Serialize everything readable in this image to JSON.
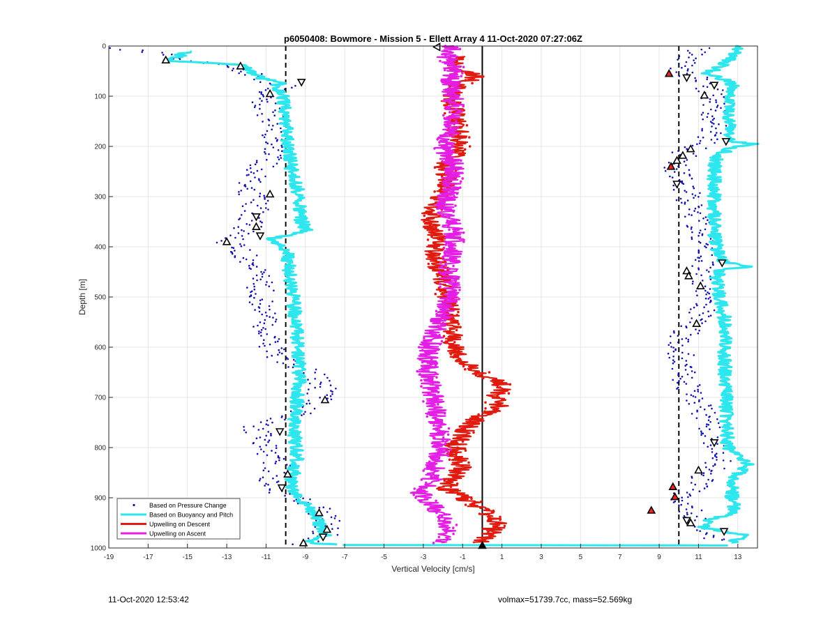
{
  "chart_data": {
    "type": "scatter",
    "title": "p6050408: Bowmore - Mission 5 - Ellett Array 4 11-Oct-2020 07:27:06Z",
    "xlabel": "Vertical Velocity [cm/s]",
    "ylabel": "Depth [m]",
    "xlim": [
      -19,
      14
    ],
    "ylim": [
      1000,
      0
    ],
    "y_reversed": true,
    "x_ticks": [
      -19,
      -17,
      -15,
      -13,
      -11,
      -9,
      -7,
      -5,
      -3,
      -1,
      1,
      3,
      5,
      7,
      9,
      11,
      13
    ],
    "y_ticks": [
      0,
      100,
      200,
      300,
      400,
      500,
      600,
      700,
      800,
      900,
      1000
    ],
    "grid": true,
    "legend_position": "bottom-left",
    "reference_lines": [
      {
        "x": -10,
        "style": "dashed",
        "color": "#000000"
      },
      {
        "x": 0,
        "style": "solid",
        "color": "#000000"
      },
      {
        "x": 10,
        "style": "dashed",
        "color": "#000000"
      }
    ],
    "series": [
      {
        "name": "Based on Pressure Change",
        "style": "dots",
        "color": "#1010b0",
        "groups": [
          {
            "depth": [
              5,
              15,
              25,
              40,
              60,
              80,
              100,
              130,
              160,
              200,
              240,
              280,
              320,
              360,
              390,
              420,
              460,
              500,
              540,
              580,
              620,
              660,
              680,
              700,
              720,
              760,
              800,
              840,
              880,
              920,
              950,
              980,
              995
            ],
            "velocity": [
              -18.5,
              -16,
              -15.5,
              -12.5,
              -11.5,
              -10.2,
              -11.2,
              -10.8,
              -10.6,
              -10.4,
              -11.2,
              -11.8,
              -11.5,
              -11.8,
              -13,
              -12,
              -11.3,
              -11.3,
              -11.1,
              -10.9,
              -10.6,
              -8.3,
              -8.1,
              -8.3,
              -8.6,
              -11.5,
              -11,
              -10.4,
              -10.8,
              -8.3,
              -7.9,
              -8.1,
              -9.2
            ]
          },
          {
            "depth": [
              5,
              15,
              25,
              40,
              55,
              70,
              90,
              120,
              150,
              180,
              210,
              240,
              270,
              300,
              340,
              380,
              420,
              460,
              500,
              540,
              580,
              620,
              660,
              700,
              740,
              780,
              820,
              860,
              900,
              930,
              960,
              985
            ],
            "velocity": [
              11.2,
              10.6,
              10.4,
              10.2,
              10.3,
              11.4,
              11.6,
              11.8,
              11.9,
              11.7,
              10.4,
              9.8,
              10.1,
              10.5,
              10.9,
              11.2,
              11.5,
              11.2,
              11.5,
              11,
              10.2,
              10.1,
              10.2,
              10.8,
              11.4,
              11.9,
              12.1,
              11.3,
              10.1,
              10.6,
              11.5,
              12.1
            ]
          }
        ]
      },
      {
        "name": "Based on Buoyancy and Pitch",
        "style": "line",
        "color": "#2ee6ee",
        "groups": [
          {
            "depth": [
              10,
              15,
              20,
              28,
              32,
              38,
              45,
              55,
              65,
              72,
              80,
              95,
              110,
              150,
              200,
              250,
              300,
              340,
              370,
              385,
              390,
              400,
              500,
              600,
              660,
              700,
              760,
              820,
              880,
              920,
              950,
              975,
              990,
              994
            ],
            "velocity": [
              -14.7,
              -15.6,
              -15.3,
              -16.2,
              -14.9,
              -12,
              -12,
              -11.7,
              -11.3,
              -10.2,
              -10.6,
              -10.1,
              -10.1,
              -10,
              -9.9,
              -9.7,
              -9.3,
              -9.3,
              -8.9,
              -11,
              -10.5,
              -10,
              -9.6,
              -9.4,
              -9.3,
              -9.4,
              -9.6,
              -9.4,
              -9.8,
              -8.8,
              -8.3,
              -8,
              -9.1,
              -7.1
            ]
          },
          {
            "depth": [
              994,
              995
            ],
            "velocity": [
              -7.1,
              12.5
            ]
          },
          {
            "depth": [
              0,
              40,
              55,
              70,
              80,
              100,
              150,
              190,
              195,
              200,
              220,
              260,
              300,
              360,
              400,
              430,
              440,
              445,
              460,
              500,
              560,
              600,
              700,
              750,
              800,
              825,
              835,
              860,
              900,
              930,
              945,
              960,
              975,
              990
            ],
            "velocity": [
              13.2,
              12.2,
              11.4,
              12.6,
              12.8,
              12.5,
              12.6,
              12.6,
              13.9,
              12.8,
              11.9,
              11.8,
              11.8,
              11.8,
              11.9,
              12.3,
              13.5,
              12.2,
              11.9,
              12.1,
              12.4,
              12.3,
              12.4,
              12.4,
              12.5,
              13.2,
              13.6,
              12.7,
              12.7,
              12.9,
              11.4,
              11.3,
              13.4,
              12.6
            ]
          }
        ]
      },
      {
        "name": "Upwelling on Descent",
        "style": "line",
        "color": "#e11a10",
        "groups": [
          {
            "depth": [
              20,
              40,
              60,
              80,
              100,
              130,
              160,
              200,
              240,
              280,
              320,
              350,
              380,
              420,
              460,
              500,
              540,
              580,
              620,
              640,
              660,
              680,
              700,
              720,
              745,
              760,
              800,
              840,
              880,
              910,
              930,
              950,
              970,
              990
            ],
            "velocity": [
              -1.1,
              -1.5,
              -0.3,
              -1.2,
              -1.6,
              -1.4,
              -1.3,
              -1.1,
              -1.9,
              -1.8,
              -2.4,
              -2.7,
              -2.3,
              -2.4,
              -2.1,
              -1.8,
              -1.6,
              -1.5,
              -1.3,
              -0.6,
              0.3,
              1.2,
              0.6,
              0.8,
              -0.4,
              -0.8,
              -1.4,
              -1.1,
              -1.9,
              -0.5,
              0.2,
              0.8,
              0.4,
              -0.2
            ]
          }
        ]
      },
      {
        "name": "Upwelling on Ascent",
        "style": "line",
        "color": "#e51ee5",
        "groups": [
          {
            "depth": [
              0,
              20,
              40,
              60,
              80,
              100,
              130,
              160,
              200,
              240,
              280,
              320,
              360,
              400,
              440,
              480,
              520,
              560,
              600,
              640,
              680,
              720,
              760,
              800,
              840,
              870,
              890,
              910,
              930,
              960,
              990
            ],
            "velocity": [
              -1.6,
              -1.8,
              -1.4,
              -1.6,
              -1.6,
              -1.5,
              -1.4,
              -1.5,
              -2,
              -1.4,
              -1.6,
              -1.9,
              -1.5,
              -1.4,
              -1.7,
              -1.6,
              -1.8,
              -2.3,
              -2.7,
              -2.8,
              -2.6,
              -2.4,
              -2.2,
              -2.1,
              -2.4,
              -2.6,
              -3.2,
              -2.6,
              -2.1,
              -1.7,
              -2
            ]
          }
        ]
      }
    ],
    "markers": [
      {
        "x": -16.1,
        "y": 28,
        "shape": "triangle-up",
        "fill": "#ffffff"
      },
      {
        "x": -12.3,
        "y": 40,
        "shape": "triangle-up",
        "fill": "#ffffff"
      },
      {
        "x": -9.2,
        "y": 72,
        "shape": "triangle-down",
        "fill": "#ffffff"
      },
      {
        "x": -10.8,
        "y": 95,
        "shape": "triangle-up",
        "fill": "#ffffff"
      },
      {
        "x": -10.8,
        "y": 295,
        "shape": "triangle-up",
        "fill": "#ffffff"
      },
      {
        "x": -11.5,
        "y": 340,
        "shape": "triangle-down",
        "fill": "#ffffff"
      },
      {
        "x": -11.5,
        "y": 360,
        "shape": "triangle-up",
        "fill": "#ffffff"
      },
      {
        "x": -11.3,
        "y": 378,
        "shape": "triangle-down",
        "fill": "#ffffff"
      },
      {
        "x": -13,
        "y": 390,
        "shape": "triangle-up",
        "fill": "#ffffff"
      },
      {
        "x": -8,
        "y": 705,
        "shape": "triangle-up",
        "fill": "#ffffff"
      },
      {
        "x": -10.3,
        "y": 768,
        "shape": "triangle-down",
        "fill": "#ffffff"
      },
      {
        "x": -9.9,
        "y": 853,
        "shape": "triangle-up",
        "fill": "#ffffff"
      },
      {
        "x": -10.2,
        "y": 880,
        "shape": "triangle-down",
        "fill": "#ffffff"
      },
      {
        "x": -8.3,
        "y": 930,
        "shape": "triangle-up",
        "fill": "#ffffff"
      },
      {
        "x": -7.9,
        "y": 963,
        "shape": "triangle-up",
        "fill": "#ffffff"
      },
      {
        "x": -8.1,
        "y": 978,
        "shape": "triangle-down",
        "fill": "#ffffff"
      },
      {
        "x": -9.1,
        "y": 990,
        "shape": "triangle-up",
        "fill": "#ffffff"
      },
      {
        "x": -2.3,
        "y": 2,
        "shape": "triangle-left",
        "fill": "#ffffff"
      },
      {
        "x": 0,
        "y": 995,
        "shape": "triangle-up",
        "fill": "#000000"
      },
      {
        "x": 9.5,
        "y": 55,
        "shape": "triangle-up",
        "fill": "#ff2020"
      },
      {
        "x": 10.4,
        "y": 63,
        "shape": "triangle-down",
        "fill": "#ffffff"
      },
      {
        "x": 11.8,
        "y": 78,
        "shape": "triangle-down",
        "fill": "#ffffff"
      },
      {
        "x": 11.3,
        "y": 98,
        "shape": "triangle-up",
        "fill": "#ffffff"
      },
      {
        "x": 12.4,
        "y": 190,
        "shape": "triangle-down",
        "fill": "#ffffff"
      },
      {
        "x": 10.6,
        "y": 205,
        "shape": "triangle-up",
        "fill": "#ffffff"
      },
      {
        "x": 10.2,
        "y": 218,
        "shape": "triangle-up",
        "fill": "#ffffff"
      },
      {
        "x": 9.9,
        "y": 228,
        "shape": "triangle-up",
        "fill": "#ffffff"
      },
      {
        "x": 9.6,
        "y": 240,
        "shape": "triangle-up",
        "fill": "#ff2020"
      },
      {
        "x": 9.9,
        "y": 275,
        "shape": "triangle-down",
        "fill": "#ffffff"
      },
      {
        "x": 12.2,
        "y": 432,
        "shape": "triangle-down",
        "fill": "#ffffff"
      },
      {
        "x": 10.4,
        "y": 448,
        "shape": "triangle-up",
        "fill": "#ffffff"
      },
      {
        "x": 10.5,
        "y": 458,
        "shape": "triangle-up",
        "fill": "#ffffff"
      },
      {
        "x": 11.1,
        "y": 478,
        "shape": "triangle-up",
        "fill": "#ffffff"
      },
      {
        "x": 10.9,
        "y": 553,
        "shape": "triangle-up",
        "fill": "#ffffff"
      },
      {
        "x": 11.8,
        "y": 790,
        "shape": "triangle-down",
        "fill": "#ffffff"
      },
      {
        "x": 11,
        "y": 845,
        "shape": "triangle-up",
        "fill": "#ffffff"
      },
      {
        "x": 9.7,
        "y": 878,
        "shape": "triangle-up",
        "fill": "#ff2020"
      },
      {
        "x": 9.8,
        "y": 898,
        "shape": "triangle-up",
        "fill": "#ff2020"
      },
      {
        "x": 8.6,
        "y": 925,
        "shape": "triangle-up",
        "fill": "#ff2020"
      },
      {
        "x": 10.4,
        "y": 945,
        "shape": "triangle-down",
        "fill": "#ffffff"
      },
      {
        "x": 10.6,
        "y": 950,
        "shape": "triangle-up",
        "fill": "#ffffff"
      },
      {
        "x": 12.3,
        "y": 967,
        "shape": "triangle-down",
        "fill": "#ffffff"
      }
    ]
  },
  "footer": {
    "timestamp": "11-Oct-2020 12:53:42",
    "info": "volmax=51739.7cc, mass=52.569kg"
  }
}
